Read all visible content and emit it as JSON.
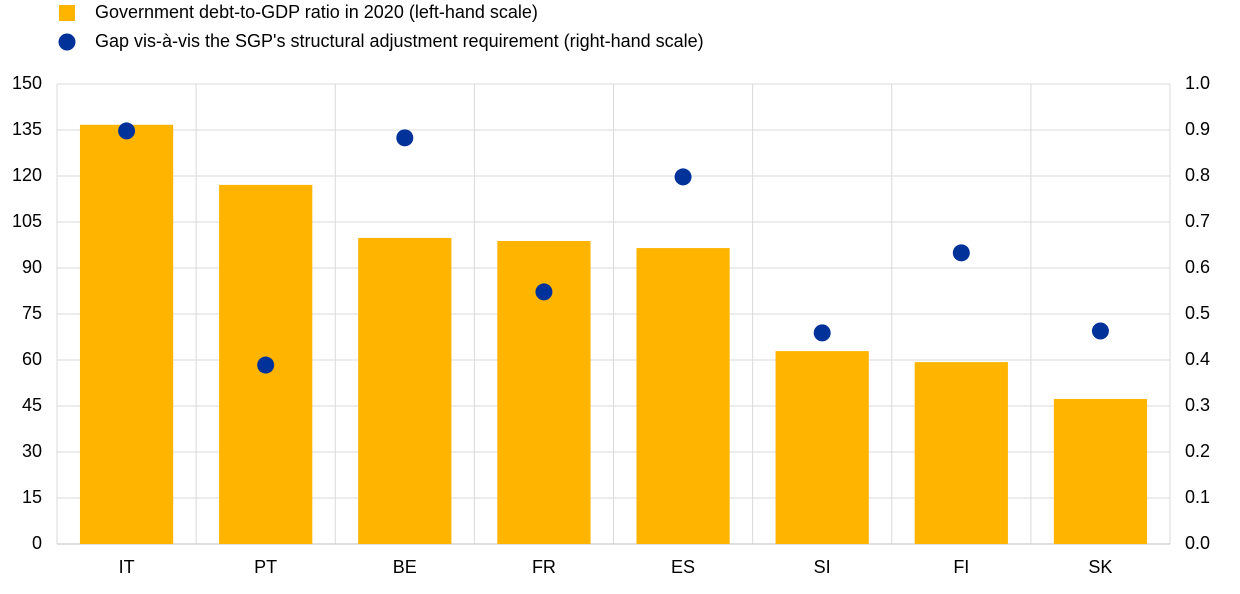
{
  "chart_data": {
    "type": "bar",
    "categories": [
      "IT",
      "PT",
      "BE",
      "FR",
      "ES",
      "SI",
      "FI",
      "SK"
    ],
    "series": [
      {
        "name": "Government debt-to-GDP ratio in 2020 (left-hand scale)",
        "type": "bar",
        "color": "#ffb400",
        "values": [
          136.7,
          117.1,
          99.8,
          98.8,
          96.5,
          62.9,
          59.3,
          47.3
        ]
      },
      {
        "name": "Gap vis-à-vis the SGP's structural adjustment requirement  (right-hand scale)",
        "type": "scatter",
        "color": "#003299",
        "axis": "y2",
        "values": [
          0.898,
          0.389,
          0.883,
          0.548,
          0.798,
          0.459,
          0.633,
          0.463
        ]
      }
    ],
    "ylim": [
      0,
      150
    ],
    "yticks": [
      0,
      15,
      30,
      45,
      60,
      75,
      90,
      105,
      120,
      135,
      150
    ],
    "y2lim": [
      0,
      1
    ],
    "y2ticks": [
      {
        "value": 0,
        "label": "0.0"
      },
      0.1,
      0.2,
      0.3,
      0.4,
      0.5,
      0.6,
      0.7,
      0.8,
      0.9,
      {
        "value": 1,
        "label": "1.0"
      }
    ],
    "grid": true
  }
}
